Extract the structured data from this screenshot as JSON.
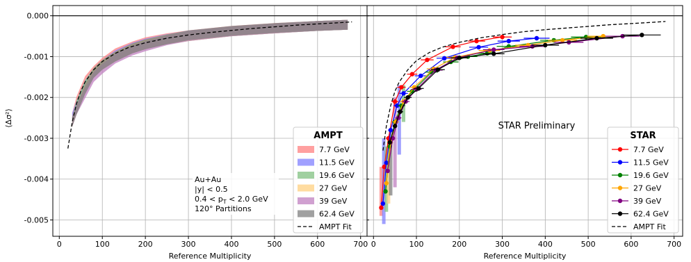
{
  "chart_data": {
    "type": "line",
    "ylabel": "⟨Δσ²⟩",
    "ylim": [
      -0.0054,
      0.00025
    ],
    "yticks": [
      0,
      -0.001,
      -0.002,
      -0.003,
      -0.004,
      -0.005
    ],
    "ytick_labels": [
      "0.000",
      "-0.001",
      "-0.002",
      "-0.003",
      "-0.004",
      "-0.005"
    ],
    "grid": true,
    "panels": [
      {
        "id": "ampt",
        "xlabel": "Reference Multiplicity",
        "xlim": [
          -15,
          715
        ],
        "xticks": [
          0,
          100,
          200,
          300,
          400,
          500,
          600,
          700
        ],
        "legend": {
          "title": "AMPT",
          "placement": "lower-right",
          "fit_label": "AMPT Fit"
        },
        "annotation": [
          "Au+Au",
          "|y| < 0.5",
          "0.4 < pT < 2.0 GeV",
          "120° Partitions"
        ],
        "bands": [
          {
            "name": "7.7 GeV",
            "color": "#ff8080",
            "x": [
              30,
              40,
              60,
              80,
              100,
              130,
              170,
              200,
              250,
              300,
              400,
              500,
              600,
              670
            ],
            "y": [
              -0.0025,
              -0.0021,
              -0.0016,
              -0.00135,
              -0.00115,
              -0.00092,
              -0.00075,
              -0.00065,
              -0.00055,
              -0.00048,
              -0.00037,
              -0.0003,
              -0.00025,
              -0.00022
            ],
            "half_width": 0.00012
          },
          {
            "name": "11.5 GeV",
            "color": "#8080ff",
            "x": [
              30,
              40,
              60,
              80,
              100,
              130,
              170,
              200,
              250,
              300,
              400,
              500,
              600,
              670
            ],
            "y": [
              -0.0025,
              -0.0022,
              -0.0017,
              -0.0014,
              -0.0012,
              -0.00097,
              -0.00078,
              -0.00068,
              -0.00057,
              -0.00049,
              -0.00038,
              -0.00031,
              -0.00025,
              -0.00022
            ],
            "half_width": 0.00012
          },
          {
            "name": "19.6 GeV",
            "color": "#80c080",
            "x": [
              30,
              40,
              60,
              80,
              100,
              130,
              170,
              200,
              250,
              300,
              400,
              500,
              600,
              670
            ],
            "y": [
              -0.0026,
              -0.0022,
              -0.0017,
              -0.0014,
              -0.0012,
              -0.001,
              -0.0008,
              -0.0007,
              -0.00058,
              -0.0005,
              -0.00038,
              -0.00031,
              -0.00025,
              -0.00022
            ],
            "half_width": 0.00012
          },
          {
            "name": "27 GeV",
            "color": "#ffd080",
            "x": [
              30,
              40,
              60,
              80,
              100,
              130,
              170,
              200,
              250,
              300,
              400,
              500,
              600,
              670
            ],
            "y": [
              -0.0026,
              -0.0023,
              -0.0018,
              -0.0014,
              -0.0012,
              -0.001,
              -0.0008,
              -0.0007,
              -0.00058,
              -0.0005,
              -0.00038,
              -0.00031,
              -0.00025,
              -0.00022
            ],
            "half_width": 0.00012
          },
          {
            "name": "39 GeV",
            "color": "#c080c0",
            "x": [
              30,
              40,
              60,
              80,
              100,
              130,
              170,
              200,
              250,
              300,
              400,
              500,
              600,
              670
            ],
            "y": [
              -0.0026,
              -0.0023,
              -0.0019,
              -0.0015,
              -0.0013,
              -0.00105,
              -0.00085,
              -0.00075,
              -0.0006,
              -0.0005,
              -0.00038,
              -0.00031,
              -0.00025,
              -0.00022
            ],
            "half_width": 0.00012
          },
          {
            "name": "62.4 GeV",
            "color": "#808080",
            "x": [
              30,
              40,
              60,
              80,
              100,
              130,
              170,
              200,
              250,
              300,
              400,
              500,
              600,
              670
            ],
            "y": [
              -0.0026,
              -0.0023,
              -0.0018,
              -0.0014,
              -0.0012,
              -0.001,
              -0.0008,
              -0.0007,
              -0.00058,
              -0.00048,
              -0.00037,
              -0.0003,
              -0.00025,
              -0.00022
            ],
            "half_width": 0.00012
          }
        ],
        "fit": {
          "x": [
            20,
            30,
            40,
            50,
            60,
            80,
            100,
            130,
            160,
            200,
            250,
            300,
            350,
            400,
            450,
            500,
            550,
            600,
            650,
            680
          ],
          "y": [
            -0.00325,
            -0.0026,
            -0.00215,
            -0.00185,
            -0.00162,
            -0.00132,
            -0.00112,
            -0.00092,
            -0.00078,
            -0.00066,
            -0.00055,
            -0.00047,
            -0.00041,
            -0.00036,
            -0.00031,
            -0.00027,
            -0.00023,
            -0.0002,
            -0.00017,
            -0.00015
          ]
        }
      },
      {
        "id": "star",
        "xlabel": "Reference Multiplicity",
        "xlim": [
          -15,
          720
        ],
        "xticks": [
          0,
          100,
          200,
          300,
          400,
          500,
          600,
          700
        ],
        "legend": {
          "title": "STAR",
          "placement": "lower-right",
          "fit_label": "AMPT Fit"
        },
        "annotation": [
          "STAR Preliminary"
        ],
        "series": [
          {
            "name": "7.7 GeV",
            "color": "#ff0000",
            "x": [
              18,
              25,
              35,
              50,
              65,
              90,
              125,
              185,
              240,
              300
            ],
            "y": [
              -0.0047,
              -0.0037,
              -0.003,
              -0.0021,
              -0.00175,
              -0.00143,
              -0.00108,
              -0.00076,
              -0.00062,
              -0.00052
            ],
            "xerr": [
              4,
              5,
              6,
              8,
              10,
              12,
              15,
              18,
              20,
              22
            ]
          },
          {
            "name": "11.5 GeV",
            "color": "#0000ff",
            "x": [
              22,
              30,
              40,
              55,
              70,
              110,
              165,
              245,
              315,
              380
            ],
            "y": [
              -0.0046,
              -0.0036,
              -0.0028,
              -0.0022,
              -0.0019,
              -0.00147,
              -0.00104,
              -0.00077,
              -0.00062,
              -0.00055
            ],
            "xerr": [
              4,
              5,
              6,
              8,
              10,
              14,
              18,
              22,
              26,
              30
            ]
          },
          {
            "name": "19.6 GeV",
            "color": "#008000",
            "x": [
              28,
              38,
              50,
              65,
              90,
              135,
              180,
              220,
              265,
              315,
              420,
              495
            ],
            "y": [
              -0.0043,
              -0.0032,
              -0.0026,
              -0.0022,
              -0.00185,
              -0.00138,
              -0.00113,
              -0.001,
              -0.00092,
              -0.00075,
              -0.0006,
              -0.00052
            ],
            "xerr": [
              4,
              5,
              7,
              9,
              12,
              15,
              18,
              22,
              25,
              28,
              32,
              35
            ]
          },
          {
            "name": "27 GeV",
            "color": "#ffa500",
            "x": [
              30,
              40,
              52,
              70,
              95,
              140,
              190,
              270,
              360,
              440,
              535
            ],
            "y": [
              -0.0041,
              -0.0031,
              -0.0026,
              -0.0021,
              -0.00175,
              -0.0013,
              -0.00102,
              -0.00085,
              -0.00072,
              -0.0006,
              -0.0005
            ],
            "xerr": [
              4,
              5,
              7,
              9,
              12,
              16,
              20,
              25,
              30,
              34,
              38
            ]
          },
          {
            "name": "39 GeV",
            "color": "#800080",
            "x": [
              33,
              45,
              58,
              75,
              100,
              145,
              195,
              280,
              370,
              455,
              580
            ],
            "y": [
              -0.0038,
              -0.003,
              -0.0025,
              -0.0021,
              -0.0018,
              -0.00133,
              -0.00103,
              -0.00083,
              -0.00075,
              -0.00065,
              -0.0005
            ],
            "xerr": [
              4,
              5,
              7,
              9,
              12,
              16,
              20,
              25,
              30,
              34,
              40
            ]
          },
          {
            "name": "62.4 GeV",
            "color": "#000000",
            "x": [
              38,
              50,
              62,
              80,
              105,
              150,
              200,
              280,
              400,
              520,
              625
            ],
            "y": [
              -0.0031,
              -0.0027,
              -0.00235,
              -0.002,
              -0.00178,
              -0.00132,
              -0.00103,
              -0.00093,
              -0.00072,
              -0.00055,
              -0.00047
            ],
            "xerr": [
              4,
              5,
              7,
              9,
              12,
              16,
              20,
              25,
              32,
              38,
              44
            ]
          }
        ],
        "bands": [
          {
            "color": "#ff8080",
            "x": 18,
            "y_low": -0.0049,
            "y_high": -0.0037
          },
          {
            "color": "#8080ff",
            "x": 24,
            "y_low": -0.0051,
            "y_high": -0.003
          },
          {
            "color": "#80c080",
            "x": 30,
            "y_low": -0.0048,
            "y_high": -0.0032
          },
          {
            "color": "#ffd080",
            "x": 35,
            "y_low": -0.0046,
            "y_high": -0.003
          },
          {
            "color": "#808080",
            "x": 40,
            "y_low": -0.0044,
            "y_high": -0.0028
          },
          {
            "color": "#c080c0",
            "x": 50,
            "y_low": -0.0042,
            "y_high": -0.002
          },
          {
            "color": "#8080ff",
            "x": 60,
            "y_low": -0.0034,
            "y_high": -0.0017
          },
          {
            "color": "#80c080",
            "x": 70,
            "y_low": -0.0026,
            "y_high": -0.0017
          }
        ],
        "fit": {
          "x": [
            22,
            30,
            40,
            50,
            60,
            80,
            100,
            130,
            160,
            200,
            250,
            300,
            350,
            400,
            450,
            500,
            550,
            600,
            650,
            680
          ],
          "y": [
            -0.0033,
            -0.0027,
            -0.0022,
            -0.00185,
            -0.00162,
            -0.00132,
            -0.0011,
            -0.0009,
            -0.00077,
            -0.00065,
            -0.00054,
            -0.00046,
            -0.00039,
            -0.00034,
            -0.0003,
            -0.00026,
            -0.00022,
            -0.00019,
            -0.00016,
            -0.00014
          ]
        }
      }
    ]
  }
}
